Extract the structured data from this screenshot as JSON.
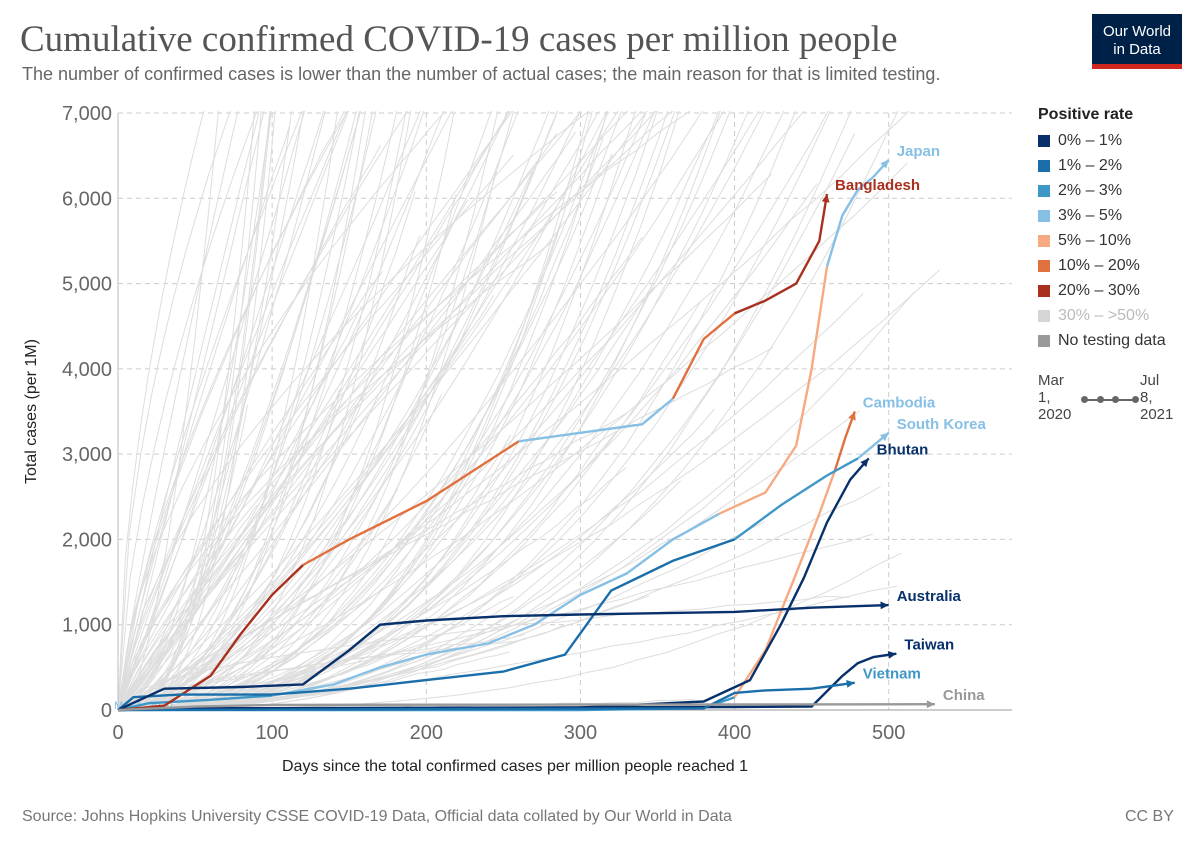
{
  "header": {
    "title": "Cumulative confirmed COVID-19 cases per million people",
    "subtitle": "The number of confirmed cases is lower than the number of actual cases; the main reason for that is limited testing."
  },
  "logo": {
    "line1": "Our World",
    "line2": "in Data"
  },
  "legend": {
    "title": "Positive rate",
    "items": [
      {
        "label": "0% – 1%",
        "color": "#08306b"
      },
      {
        "label": "1% – 2%",
        "color": "#1a6faa"
      },
      {
        "label": "2% – 3%",
        "color": "#3f97c7"
      },
      {
        "label": "3% – 5%",
        "color": "#86c0e5"
      },
      {
        "label": "5% – 10%",
        "color": "#f7aa82"
      },
      {
        "label": "10% – 20%",
        "color": "#e0703e"
      },
      {
        "label": "20% – 30%",
        "color": "#a9301f"
      },
      {
        "label": "30% – >50%",
        "color": "#d6d6d6"
      },
      {
        "label": "No testing data",
        "color": "#999999"
      }
    ]
  },
  "timeline": {
    "start_l1": "Mar",
    "start_l2": "1,",
    "start_l3": "2020",
    "end_l1": "Jul",
    "end_l2": "8,",
    "end_l3": "2021"
  },
  "footer": {
    "source": "Source: Johns Hopkins University CSSE COVID-19 Data, Official data collated by Our World in Data",
    "license": "CC BY"
  },
  "chart_data": {
    "type": "line",
    "xlabel": "Days since the total confirmed cases per million people reached 1",
    "ylabel": "Total cases (per 1M)",
    "xlim": [
      0,
      580
    ],
    "ylim": [
      0,
      7000
    ],
    "xticks": [
      0,
      100,
      200,
      300,
      400,
      500
    ],
    "yticks": [
      0,
      1000,
      2000,
      3000,
      4000,
      5000,
      6000,
      7000
    ],
    "ytick_labels": [
      "0",
      "1,000",
      "2,000",
      "3,000",
      "4,000",
      "5,000",
      "6,000",
      "7,000"
    ],
    "start_annotation": "Mar 1, 2020",
    "grid": true,
    "background_series_color": "#dddddd",
    "series": [
      {
        "name": "Japan",
        "label_color": "#86c0e5",
        "points": [
          [
            0,
            0
          ],
          [
            20,
            80
          ],
          [
            60,
            120
          ],
          [
            100,
            170
          ],
          [
            140,
            300
          ],
          [
            170,
            500
          ],
          [
            200,
            650
          ],
          [
            240,
            780
          ],
          [
            270,
            1000
          ],
          [
            300,
            1350
          ],
          [
            330,
            1600
          ],
          [
            360,
            2000
          ],
          [
            390,
            2300
          ],
          [
            420,
            2550
          ],
          [
            440,
            3100
          ],
          [
            450,
            4000
          ],
          [
            460,
            5200
          ],
          [
            470,
            5800
          ],
          [
            480,
            6100
          ],
          [
            490,
            6250
          ],
          [
            500,
            6450
          ]
        ],
        "segments": [
          [
            0,
            3,
            "#3f97c7"
          ],
          [
            3,
            7,
            "#86c0e5"
          ],
          [
            7,
            12,
            "#86c0e5"
          ],
          [
            12,
            16,
            "#f7aa82"
          ],
          [
            16,
            20,
            "#86c0e5"
          ]
        ]
      },
      {
        "name": "Bangladesh",
        "label_color": "#a9301f",
        "points": [
          [
            0,
            0
          ],
          [
            30,
            50
          ],
          [
            60,
            400
          ],
          [
            80,
            900
          ],
          [
            100,
            1350
          ],
          [
            120,
            1700
          ],
          [
            150,
            2000
          ],
          [
            200,
            2450
          ],
          [
            230,
            2800
          ],
          [
            260,
            3150
          ],
          [
            300,
            3250
          ],
          [
            340,
            3350
          ],
          [
            360,
            3650
          ],
          [
            380,
            4350
          ],
          [
            400,
            4650
          ],
          [
            420,
            4800
          ],
          [
            440,
            5000
          ],
          [
            455,
            5500
          ],
          [
            460,
            6050
          ]
        ],
        "segments": [
          [
            0,
            5,
            "#a9301f"
          ],
          [
            5,
            9,
            "#e0703e"
          ],
          [
            9,
            12,
            "#86c0e5"
          ],
          [
            12,
            14,
            "#e0703e"
          ],
          [
            14,
            18,
            "#a9301f"
          ]
        ]
      },
      {
        "name": "Cambodia",
        "label_color": "#86c0e5",
        "points": [
          [
            0,
            0
          ],
          [
            100,
            0
          ],
          [
            200,
            0
          ],
          [
            300,
            0
          ],
          [
            380,
            20
          ],
          [
            400,
            150
          ],
          [
            420,
            700
          ],
          [
            440,
            1600
          ],
          [
            455,
            2300
          ],
          [
            465,
            2800
          ],
          [
            472,
            3200
          ],
          [
            478,
            3500
          ]
        ],
        "segments": [
          [
            0,
            5,
            "#3f97c7"
          ],
          [
            5,
            9,
            "#f7aa82"
          ],
          [
            9,
            11,
            "#e0703e"
          ]
        ]
      },
      {
        "name": "South Korea",
        "label_color": "#86c0e5",
        "points": [
          [
            0,
            0
          ],
          [
            10,
            150
          ],
          [
            40,
            180
          ],
          [
            100,
            180
          ],
          [
            150,
            250
          ],
          [
            200,
            350
          ],
          [
            250,
            450
          ],
          [
            290,
            650
          ],
          [
            320,
            1400
          ],
          [
            360,
            1750
          ],
          [
            400,
            2000
          ],
          [
            430,
            2400
          ],
          [
            460,
            2750
          ],
          [
            480,
            2950
          ],
          [
            500,
            3250
          ]
        ],
        "segments": [
          [
            0,
            4,
            "#1a6faa"
          ],
          [
            4,
            10,
            "#1a6faa"
          ],
          [
            10,
            13,
            "#3f97c7"
          ],
          [
            13,
            14,
            "#86c0e5"
          ]
        ]
      },
      {
        "name": "Bhutan",
        "label_color": "#08306b",
        "points": [
          [
            0,
            0
          ],
          [
            60,
            20
          ],
          [
            120,
            20
          ],
          [
            200,
            20
          ],
          [
            300,
            30
          ],
          [
            380,
            100
          ],
          [
            410,
            350
          ],
          [
            430,
            1000
          ],
          [
            445,
            1550
          ],
          [
            460,
            2200
          ],
          [
            475,
            2700
          ],
          [
            487,
            2950
          ]
        ],
        "segments": [
          [
            0,
            11,
            "#08306b"
          ]
        ]
      },
      {
        "name": "Australia",
        "label_color": "#08306b",
        "points": [
          [
            0,
            0
          ],
          [
            30,
            250
          ],
          [
            80,
            270
          ],
          [
            120,
            300
          ],
          [
            150,
            700
          ],
          [
            170,
            1000
          ],
          [
            200,
            1050
          ],
          [
            250,
            1100
          ],
          [
            300,
            1120
          ],
          [
            400,
            1150
          ],
          [
            450,
            1200
          ],
          [
            500,
            1230
          ]
        ],
        "segments": [
          [
            0,
            11,
            "#08306b"
          ]
        ]
      },
      {
        "name": "Taiwan",
        "label_color": "#08306b",
        "points": [
          [
            0,
            0
          ],
          [
            50,
            20
          ],
          [
            150,
            25
          ],
          [
            300,
            30
          ],
          [
            400,
            35
          ],
          [
            450,
            40
          ],
          [
            470,
            400
          ],
          [
            480,
            550
          ],
          [
            490,
            620
          ],
          [
            505,
            660
          ]
        ],
        "segments": [
          [
            0,
            9,
            "#08306b"
          ]
        ]
      },
      {
        "name": "Vietnam",
        "label_color": "#3f97c7",
        "points": [
          [
            0,
            0
          ],
          [
            100,
            5
          ],
          [
            200,
            10
          ],
          [
            300,
            15
          ],
          [
            380,
            20
          ],
          [
            400,
            200
          ],
          [
            420,
            230
          ],
          [
            450,
            250
          ],
          [
            470,
            300
          ],
          [
            478,
            320
          ]
        ],
        "segments": [
          [
            0,
            9,
            "#1a6faa"
          ]
        ]
      },
      {
        "name": "China",
        "label_color": "#999999",
        "points": [
          [
            0,
            0
          ],
          [
            50,
            40
          ],
          [
            100,
            60
          ],
          [
            200,
            62
          ],
          [
            300,
            63
          ],
          [
            400,
            65
          ],
          [
            530,
            68
          ]
        ],
        "segments": [
          [
            0,
            6,
            "#999999"
          ]
        ]
      }
    ]
  }
}
